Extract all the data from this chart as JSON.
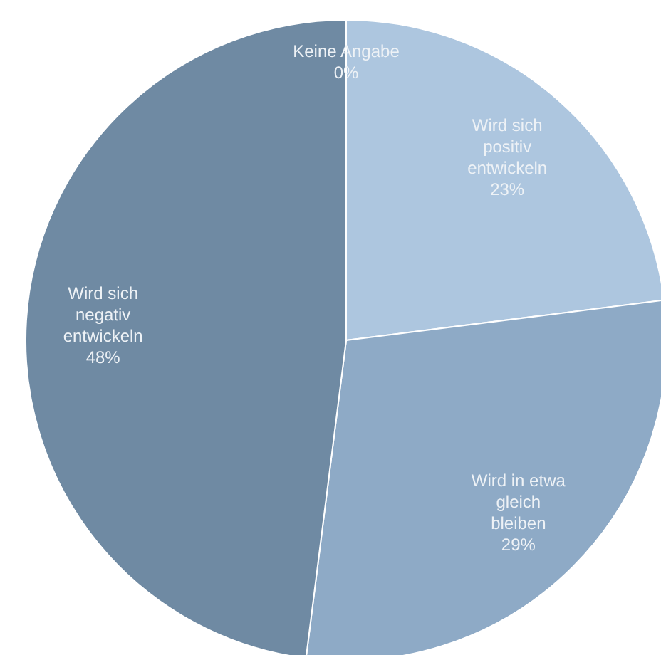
{
  "chart_data": {
    "type": "pie",
    "categories": [
      "Keine Angabe",
      "Wird sich positiv entwickeln",
      "Wird in etwa gleich bleiben",
      "Wird sich negativ entwickeln"
    ],
    "values": [
      0,
      23,
      29,
      48
    ],
    "colors": [
      "#7f9ab3",
      "#adc6df",
      "#8eaac6",
      "#6f8aa3"
    ],
    "value_labels": [
      "0%",
      "23%",
      "29%",
      "48%"
    ],
    "legend": false
  }
}
